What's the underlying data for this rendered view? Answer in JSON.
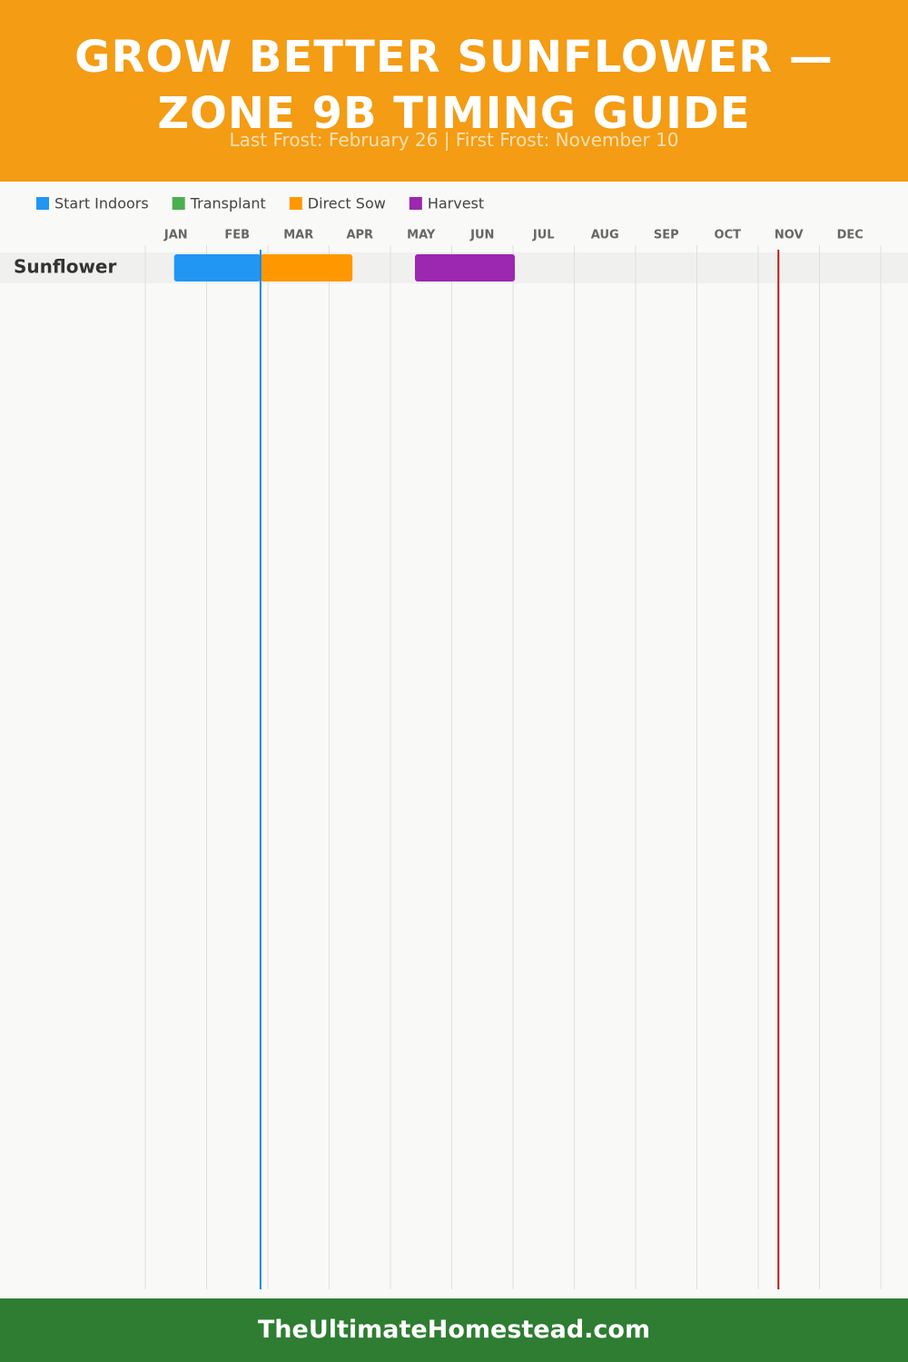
{
  "header": {
    "title_lines": [
      "GROW BETTER SUNFLOWER —",
      "ZONE 9B TIMING GUIDE"
    ],
    "subtitle": "Last Frost: February 26 | First Frost: November 10"
  },
  "chart_data": {
    "type": "gantt",
    "xlim": [
      0,
      12
    ],
    "xticks": [
      {
        "value": 0.5,
        "label": "JAN"
      },
      {
        "value": 1.5,
        "label": "FEB"
      },
      {
        "value": 2.5,
        "label": "MAR"
      },
      {
        "value": 3.5,
        "label": "APR"
      },
      {
        "value": 4.5,
        "label": "MAY"
      },
      {
        "value": 5.5,
        "label": "JUN"
      },
      {
        "value": 6.5,
        "label": "JUL"
      },
      {
        "value": 7.5,
        "label": "AUG"
      },
      {
        "value": 8.5,
        "label": "SEP"
      },
      {
        "value": 9.5,
        "label": "OCT"
      },
      {
        "value": 10.5,
        "label": "NOV"
      },
      {
        "value": 11.5,
        "label": "DEC"
      }
    ],
    "grid": true,
    "rows": [
      "Sunflower"
    ],
    "series": [
      {
        "name": "Start Indoors",
        "color": "#2196f3",
        "start": [
          0.47
        ],
        "end": [
          1.88
        ]
      },
      {
        "name": "Transplant",
        "color": "#4caf50",
        "start": [
          null
        ],
        "end": [
          null
        ]
      },
      {
        "name": "Direct Sow",
        "color": "#ff9800",
        "start": [
          1.88
        ],
        "end": [
          3.38
        ]
      },
      {
        "name": "Harvest",
        "color": "#9c27b0",
        "start": [
          4.4
        ],
        "end": [
          6.03
        ]
      }
    ],
    "markers": [
      {
        "value": 1.88,
        "color": "#1e88e5"
      },
      {
        "value": 10.33,
        "color": "#b71c1c"
      }
    ]
  },
  "footer": "TheUltimateHomestead.com"
}
